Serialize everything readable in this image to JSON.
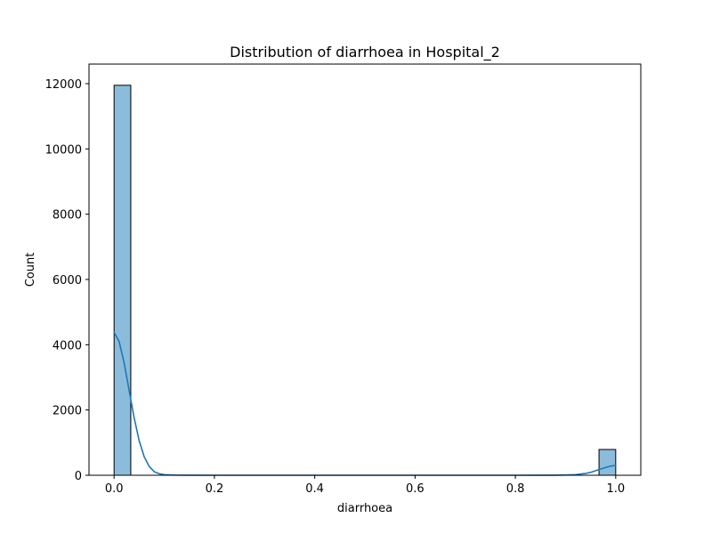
{
  "chart_data": {
    "type": "histogram",
    "title": "Distribution of diarrhoea in Hospital_2",
    "xlabel": "diarrhoea",
    "ylabel": "Count",
    "xlim": [
      -0.05,
      1.05
    ],
    "ylim": [
      0,
      12600
    ],
    "xticks": [
      {
        "value": 0.0,
        "label": "0.0"
      },
      {
        "value": 0.2,
        "label": "0.2"
      },
      {
        "value": 0.4,
        "label": "0.4"
      },
      {
        "value": 0.6,
        "label": "0.6"
      },
      {
        "value": 0.8,
        "label": "0.8"
      },
      {
        "value": 1.0,
        "label": "1.0"
      }
    ],
    "yticks": [
      {
        "value": 0,
        "label": "0"
      },
      {
        "value": 2000,
        "label": "2000"
      },
      {
        "value": 4000,
        "label": "4000"
      },
      {
        "value": 6000,
        "label": "6000"
      },
      {
        "value": 8000,
        "label": "8000"
      },
      {
        "value": 10000,
        "label": "10000"
      },
      {
        "value": 12000,
        "label": "12000"
      }
    ],
    "bars": [
      {
        "x0": 0.0,
        "x1": 0.0333,
        "count": 11950
      },
      {
        "x0": 0.9667,
        "x1": 1.0,
        "count": 790
      }
    ],
    "kde": {
      "x": [
        0.0,
        0.01,
        0.02,
        0.03,
        0.04,
        0.05,
        0.06,
        0.07,
        0.08,
        0.09,
        0.1,
        0.12,
        0.15,
        0.2,
        0.3,
        0.5,
        0.7,
        0.8,
        0.85,
        0.88,
        0.9,
        0.92,
        0.94,
        0.95,
        0.96,
        0.97,
        0.98,
        0.99,
        1.0
      ],
      "y": [
        4380,
        4100,
        3450,
        2600,
        1760,
        1060,
        570,
        270,
        110,
        45,
        18,
        4,
        1,
        0,
        0,
        0,
        0,
        0,
        1,
        3,
        8,
        20,
        55,
        90,
        140,
        190,
        240,
        280,
        300
      ]
    },
    "grid": false,
    "bar_color": "#8bbcdc",
    "bar_edge_color": "#000000",
    "line_color": "#1f77b4"
  }
}
